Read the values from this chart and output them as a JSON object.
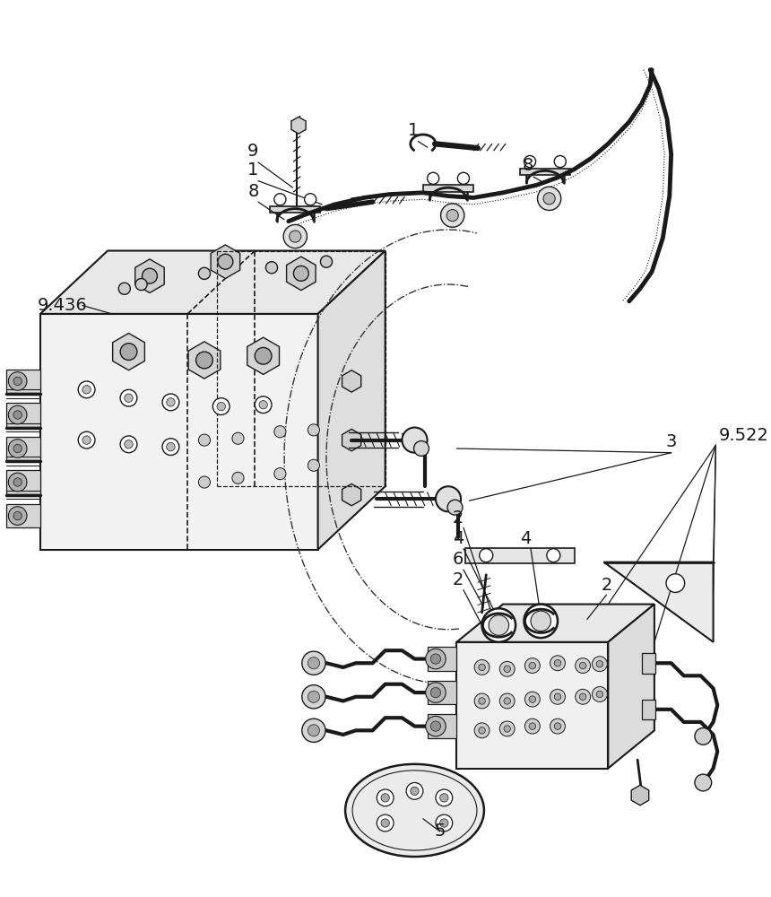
{
  "bg_color": "#ffffff",
  "line_color": "#1a1a1a",
  "lw": 1.3,
  "labels": {
    "9_436": "9.436",
    "9_522": "9.522",
    "lbl_1a": "1",
    "lbl_9": "9",
    "lbl_1b": "1",
    "lbl_8a": "8",
    "lbl_8b": "8",
    "lbl_3": "3",
    "lbl_2a": "2",
    "lbl_4a": "4",
    "lbl_6": "6",
    "lbl_2b": "2",
    "lbl_4b": "4",
    "lbl_2c": "2",
    "lbl_5": "5"
  }
}
